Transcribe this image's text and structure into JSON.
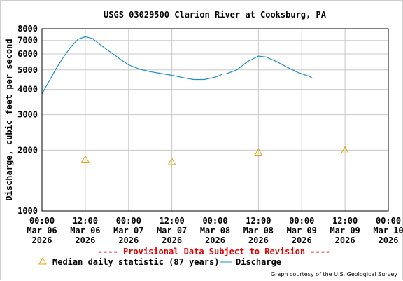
{
  "chart_data": {
    "type": "line",
    "title": "USGS 03029500 Clarion River at Cooksburg, PA",
    "ylabel": "Discharge, cubic feet per second",
    "xlabel": "",
    "y_scale": "log",
    "ylim": [
      1000,
      8000
    ],
    "y_ticks": [
      {
        "value": 1000,
        "label": "1000"
      },
      {
        "value": 2000,
        "label": "2000"
      },
      {
        "value": 3000,
        "label": "3000"
      },
      {
        "value": 4000,
        "label": "4000"
      },
      {
        "value": 5000,
        "label": "5000"
      },
      {
        "value": 6000,
        "label": "6000"
      },
      {
        "value": 7000,
        "label": "7000"
      },
      {
        "value": 8000,
        "label": "8000"
      }
    ],
    "xlim": [
      "2026-03-06 00:00",
      "2026-03-10 00:00"
    ],
    "x_ticks": [
      {
        "time": "2026-03-06 00:00",
        "label": "00:00\nMar 06\n2026"
      },
      {
        "time": "2026-03-06 12:00",
        "label": "12:00\nMar 06\n2026"
      },
      {
        "time": "2026-03-07 00:00",
        "label": "00:00\nMar 07\n2026"
      },
      {
        "time": "2026-03-07 12:00",
        "label": "12:00\nMar 07\n2026"
      },
      {
        "time": "2026-03-08 00:00",
        "label": "00:00\nMar 08\n2026"
      },
      {
        "time": "2026-03-08 12:00",
        "label": "12:00\nMar 08\n2026"
      },
      {
        "time": "2026-03-09 00:00",
        "label": "00:00\nMar 09\n2026"
      },
      {
        "time": "2026-03-09 12:00",
        "label": "12:00\nMar 09\n2026"
      },
      {
        "time": "2026-03-10 00:00",
        "label": "00:00\nMar 10\n2026"
      }
    ],
    "grid": true,
    "series": [
      {
        "name": "Discharge",
        "kind": "line",
        "color": "#1f8fc9",
        "segments": [
          [
            {
              "x": "2026-03-06 00:00",
              "y": 3800
            },
            {
              "x": "2026-03-06 02:00",
              "y": 4400
            },
            {
              "x": "2026-03-06 04:00",
              "y": 5100
            },
            {
              "x": "2026-03-06 06:00",
              "y": 5800
            },
            {
              "x": "2026-03-06 08:00",
              "y": 6500
            },
            {
              "x": "2026-03-06 10:00",
              "y": 7100
            },
            {
              "x": "2026-03-06 12:00",
              "y": 7300
            },
            {
              "x": "2026-03-06 14:00",
              "y": 7150
            },
            {
              "x": "2026-03-06 16:00",
              "y": 6700
            },
            {
              "x": "2026-03-06 18:00",
              "y": 6300
            },
            {
              "x": "2026-03-06 20:00",
              "y": 5950
            },
            {
              "x": "2026-03-06 22:00",
              "y": 5600
            },
            {
              "x": "2026-03-07 00:00",
              "y": 5300
            },
            {
              "x": "2026-03-07 03:00",
              "y": 5050
            },
            {
              "x": "2026-03-07 06:00",
              "y": 4900
            },
            {
              "x": "2026-03-07 09:00",
              "y": 4800
            },
            {
              "x": "2026-03-07 12:00",
              "y": 4700
            },
            {
              "x": "2026-03-07 15:00",
              "y": 4580
            },
            {
              "x": "2026-03-07 18:00",
              "y": 4480
            },
            {
              "x": "2026-03-07 21:00",
              "y": 4480
            },
            {
              "x": "2026-03-08 00:00",
              "y": 4600
            },
            {
              "x": "2026-03-08 02:00",
              "y": 4750
            }
          ],
          [
            {
              "x": "2026-03-08 03:00",
              "y": 4780
            },
            {
              "x": "2026-03-08 06:00",
              "y": 5000
            },
            {
              "x": "2026-03-08 09:00",
              "y": 5500
            },
            {
              "x": "2026-03-08 12:00",
              "y": 5850
            },
            {
              "x": "2026-03-08 14:00",
              "y": 5800
            },
            {
              "x": "2026-03-08 17:00",
              "y": 5500
            },
            {
              "x": "2026-03-08 20:00",
              "y": 5150
            },
            {
              "x": "2026-03-08 23:00",
              "y": 4850
            },
            {
              "x": "2026-03-09 02:00",
              "y": 4650
            },
            {
              "x": "2026-03-09 03:00",
              "y": 4550
            }
          ]
        ]
      },
      {
        "name": "Median daily statistic (87 years)",
        "kind": "marker",
        "marker": "triangle",
        "color": "#e8a400",
        "points": [
          {
            "x": "2026-03-06 12:00",
            "y": 1800
          },
          {
            "x": "2026-03-07 12:00",
            "y": 1750
          },
          {
            "x": "2026-03-08 12:00",
            "y": 1950
          },
          {
            "x": "2026-03-09 12:00",
            "y": 2000
          }
        ]
      }
    ],
    "legend_position": "bottom",
    "annotations": {
      "provisional": "---- Provisional Data Subject to Revision ----",
      "courtesy": "Graph courtesy of the U.S. Geological Survey"
    }
  }
}
